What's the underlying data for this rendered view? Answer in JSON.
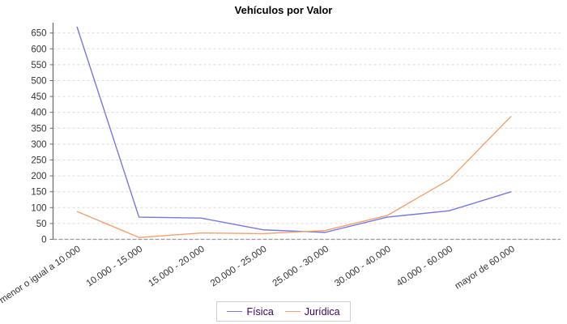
{
  "title": "Vehículos por Valor",
  "chart_data": {
    "type": "line",
    "title": "Vehículos por Valor",
    "categories": [
      "menor o igual a 10.000",
      "10.000 - 15.000",
      "15.000 - 20.000",
      "20.000 - 25.000",
      "25.000 - 30.000",
      "30.000 - 40.000",
      "40.000 - 60.000",
      "mayor de 60.000"
    ],
    "series": [
      {
        "name": "Física",
        "color": "#7678dd",
        "values": [
          670,
          70,
          67,
          30,
          22,
          70,
          90,
          150
        ]
      },
      {
        "name": "Jurídica",
        "color": "#f5a06d",
        "values": [
          88,
          6,
          20,
          18,
          28,
          75,
          188,
          388
        ]
      }
    ],
    "xlabel": "",
    "ylabel": "",
    "ylim": [
      0,
      680
    ],
    "ytick_step": 50,
    "ytick_labels": [
      "0",
      "50",
      "100",
      "150",
      "200",
      "250",
      "300",
      "350",
      "400",
      "450",
      "500",
      "550",
      "600",
      "650"
    ],
    "grid": "horizontal-dashed",
    "legend_position": "bottom-center"
  },
  "colors": {
    "series_fisica": "#7678dd",
    "series_juridica": "#f5a06d",
    "axis": "#6e6e6e",
    "baseline": "#9a9a9a",
    "grid": "#dcdcdc",
    "tick_label": "#333333",
    "x_label": "#333333",
    "legend_text": "#330066",
    "legend_border": "#cfcfcf",
    "title_text": "#000000"
  }
}
